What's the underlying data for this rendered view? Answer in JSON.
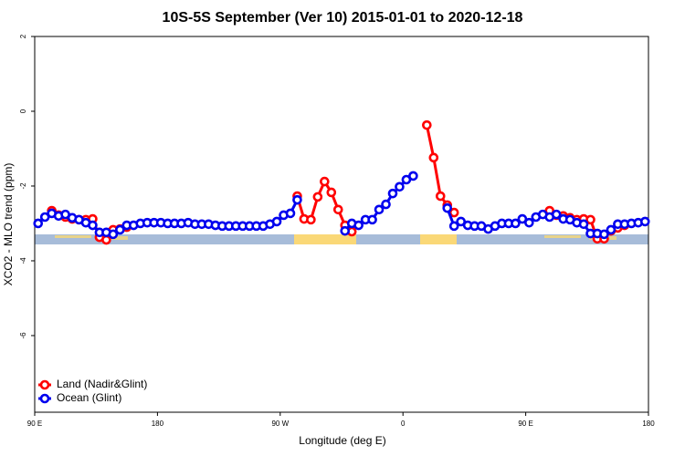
{
  "chart_data": {
    "type": "line",
    "title": "10S-5S September (Ver 10)   2015-01-01 to 2020-12-18",
    "x_label": "Longitude (deg E)",
    "y_label": "XCO2 - MLO trend (ppm)",
    "x": [
      92.5,
      97.5,
      102.5,
      107.5,
      112.5,
      117.5,
      122.5,
      127.5,
      132.5,
      137.5,
      142.5,
      147.5,
      152.5,
      157.5,
      162.5,
      167.5,
      172.5,
      177.5,
      182.5,
      187.5,
      192.5,
      197.5,
      202.5,
      207.5,
      212.5,
      217.5,
      222.5,
      227.5,
      232.5,
      237.5,
      242.5,
      247.5,
      252.5,
      257.5,
      262.5,
      267.5,
      272.5,
      277.5,
      282.5,
      287.5,
      292.5,
      297.5,
      302.5,
      307.5,
      312.5,
      317.5,
      322.5,
      327.5,
      332.5,
      337.5,
      342.5,
      347.5,
      352.5,
      357.5,
      362.5,
      367.5,
      372.5,
      377.5,
      382.5,
      387.5,
      392.5,
      397.5,
      402.5,
      407.5,
      412.5,
      417.5,
      422.5,
      427.5,
      432.5,
      437.5,
      442.5,
      447.5,
      452.5,
      457.5,
      462.5,
      467.5,
      472.5,
      477.5,
      482.5,
      487.5,
      492.5,
      497.5,
      502.5,
      507.5,
      512.5,
      517.5,
      522.5,
      527.5,
      532.5,
      537.5
    ],
    "series": [
      {
        "name": "Land (Nadir&Glint)",
        "color": "#ff0000",
        "values": [
          null,
          null,
          -2.66,
          -2.78,
          -2.83,
          -2.88,
          -2.9,
          -2.9,
          -2.88,
          -3.37,
          -3.44,
          -3.17,
          -3.15,
          -3.1,
          null,
          null,
          null,
          null,
          null,
          null,
          null,
          null,
          null,
          null,
          null,
          null,
          null,
          null,
          null,
          null,
          null,
          null,
          null,
          null,
          null,
          null,
          null,
          null,
          -2.27,
          -2.88,
          -2.9,
          -2.29,
          -1.88,
          -2.17,
          -2.63,
          -3.05,
          -3.22,
          null,
          null,
          null,
          null,
          null,
          null,
          null,
          null,
          null,
          null,
          -0.37,
          -1.24,
          -2.27,
          -2.51,
          -2.71,
          null,
          null,
          null,
          null,
          null,
          null,
          null,
          null,
          null,
          null,
          null,
          null,
          null,
          -2.66,
          -2.78,
          -2.8,
          -2.85,
          -2.9,
          -2.88,
          -2.9,
          -3.41,
          -3.41,
          -3.2,
          -3.12,
          -3.05,
          null,
          null,
          null
        ]
      },
      {
        "name": "Ocean (Glint)",
        "color": "#0000ee",
        "values": [
          -3.0,
          -2.83,
          -2.73,
          -2.8,
          -2.76,
          -2.85,
          -2.9,
          -2.98,
          -3.05,
          -3.24,
          -3.24,
          -3.29,
          -3.17,
          -3.05,
          -3.05,
          -3.0,
          -2.98,
          -2.98,
          -2.98,
          -3.0,
          -3.0,
          -3.0,
          -2.98,
          -3.02,
          -3.02,
          -3.02,
          -3.05,
          -3.07,
          -3.07,
          -3.07,
          -3.07,
          -3.07,
          -3.07,
          -3.07,
          -3.02,
          -2.95,
          -2.78,
          -2.73,
          -2.37,
          null,
          null,
          null,
          null,
          null,
          null,
          -3.2,
          -3.0,
          -3.05,
          -2.9,
          -2.9,
          -2.63,
          -2.49,
          -2.2,
          -2.02,
          -1.83,
          -1.73,
          null,
          null,
          null,
          null,
          -2.59,
          -3.07,
          -2.95,
          -3.05,
          -3.07,
          -3.07,
          -3.15,
          -3.07,
          -3.0,
          -3.0,
          -3.0,
          -2.88,
          -2.98,
          -2.83,
          -2.76,
          -2.83,
          -2.76,
          -2.88,
          -2.9,
          -2.98,
          -3.02,
          -3.27,
          -3.27,
          -3.29,
          -3.17,
          -3.02,
          -3.02,
          -3.0,
          -2.98,
          -2.95
        ]
      }
    ],
    "xlim": [
      90,
      540
    ],
    "xticks": [
      {
        "value": 90,
        "label": "90 E"
      },
      180,
      {
        "value": 270,
        "label": "90 W"
      },
      {
        "value": 360,
        "label": "0"
      },
      {
        "value": 450,
        "label": "90 E"
      },
      {
        "value": 540,
        "label": "180"
      }
    ],
    "ylim": [
      -8.05,
      2
    ],
    "yticks": [
      -6,
      -4,
      -2,
      0,
      2
    ],
    "legend": "bottom-left"
  }
}
